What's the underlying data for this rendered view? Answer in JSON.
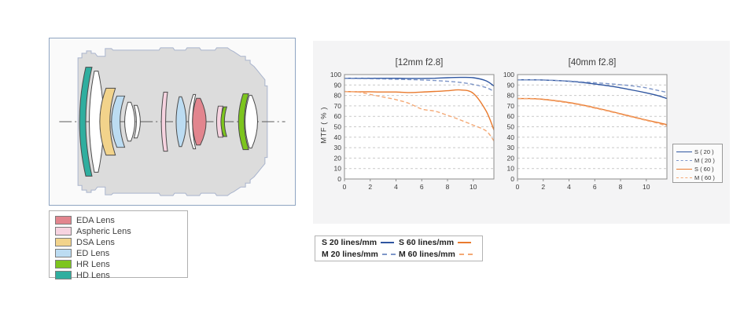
{
  "colors": {
    "eda": "#e2858e",
    "aspheric": "#f7d3e0",
    "dsa": "#f2d38b",
    "ed": "#bcdcf2",
    "hr": "#7dc51e",
    "hd": "#2fae9f",
    "barrel_fill": "#dcdcdc",
    "barrel_stroke": "#a9b4cd",
    "s20": "#2f56a0",
    "m20": "#7e96c8",
    "s60": "#e97a2e",
    "m60": "#f4a874"
  },
  "lens_legend": {
    "items": [
      {
        "key": "eda",
        "label": "EDA Lens"
      },
      {
        "key": "aspheric",
        "label": "Aspheric Lens"
      },
      {
        "key": "dsa",
        "label": "DSA Lens"
      },
      {
        "key": "ed",
        "label": "ED Lens"
      },
      {
        "key": "hr",
        "label": "HR Lens"
      },
      {
        "key": "hd",
        "label": "HD Lens"
      }
    ]
  },
  "mtf": {
    "legend_right": {
      "items": [
        {
          "label": "S ( 20 )",
          "color_key": "s20",
          "dash": false
        },
        {
          "label": "M ( 20 )",
          "color_key": "m20",
          "dash": true
        },
        {
          "label": "S ( 60 )",
          "color_key": "s60",
          "dash": false
        },
        {
          "label": "M ( 60 )",
          "color_key": "m60",
          "dash": true
        }
      ]
    },
    "legend_bottom": {
      "items": [
        {
          "label": "S 20 lines/mm",
          "color_key": "s20",
          "dash": false
        },
        {
          "label": "S 60 lines/mm",
          "color_key": "s60",
          "dash": false
        },
        {
          "label": "M 20 lines/mm",
          "color_key": "m20",
          "dash": true
        },
        {
          "label": "M 60 lines/mm",
          "color_key": "m60",
          "dash": true
        }
      ]
    }
  },
  "chart_data": [
    {
      "type": "line",
      "title": "[12mm f2.8]",
      "xlabel": "",
      "ylabel": "MTF ( % )",
      "xlim": [
        0,
        11.6
      ],
      "ylim": [
        0,
        100
      ],
      "xticks": [
        0,
        2,
        4,
        6,
        8,
        10
      ],
      "yticks": [
        0,
        10,
        20,
        30,
        40,
        50,
        60,
        70,
        80,
        90,
        100
      ],
      "grid": "horizontal-dashed",
      "legend_position": "outside-right",
      "x": [
        0,
        1,
        2,
        3,
        4,
        5,
        6,
        7,
        8,
        9,
        10,
        11,
        11.6
      ],
      "series": [
        {
          "name": "S ( 20 )",
          "color": "#2f56a0",
          "dash": false,
          "values": [
            96.5,
            96.5,
            96.5,
            96.5,
            96.5,
            96.3,
            96.3,
            96.5,
            97,
            97.3,
            97,
            94,
            89
          ]
        },
        {
          "name": "M ( 20 )",
          "color": "#7e96c8",
          "dash": true,
          "values": [
            96.3,
            96.2,
            96,
            95.8,
            95.5,
            95.2,
            94.8,
            94.3,
            93.5,
            92.5,
            90.5,
            87.5,
            84
          ]
        },
        {
          "name": "S ( 60 )",
          "color": "#e97a2e",
          "dash": false,
          "values": [
            83.8,
            83.5,
            83.5,
            83.3,
            83.3,
            82.8,
            83.2,
            83.8,
            84.5,
            85.3,
            82,
            65,
            47
          ]
        },
        {
          "name": "M ( 60 )",
          "color": "#f4a874",
          "dash": true,
          "values": [
            83.8,
            83.3,
            81,
            78.5,
            76,
            72.5,
            67,
            65,
            61,
            56.5,
            51.5,
            46,
            36.5
          ]
        }
      ]
    },
    {
      "type": "line",
      "title": "[40mm f2.8]",
      "xlabel": "",
      "ylabel": "",
      "xlim": [
        0,
        11.6
      ],
      "ylim": [
        0,
        100
      ],
      "xticks": [
        0,
        2,
        4,
        6,
        8,
        10
      ],
      "yticks": [
        0,
        10,
        20,
        30,
        40,
        50,
        60,
        70,
        80,
        90,
        100
      ],
      "grid": "horizontal-dashed",
      "legend_position": "outside-right",
      "x": [
        0,
        1,
        2,
        3,
        4,
        5,
        6,
        7,
        8,
        9,
        10,
        11,
        11.6
      ],
      "series": [
        {
          "name": "S ( 20 )",
          "color": "#2f56a0",
          "dash": false,
          "values": [
            95,
            95,
            94.8,
            94.3,
            93.5,
            92.5,
            91,
            89.3,
            87.3,
            85,
            82.5,
            79.5,
            77
          ]
        },
        {
          "name": "M ( 20 )",
          "color": "#7e96c8",
          "dash": true,
          "values": [
            95,
            95,
            94.8,
            94.3,
            93.8,
            93,
            92.2,
            91.3,
            90.3,
            89,
            87.3,
            84.5,
            83
          ]
        },
        {
          "name": "S ( 60 )",
          "color": "#e97a2e",
          "dash": false,
          "values": [
            77,
            77,
            76.3,
            75,
            73.2,
            71,
            68.3,
            65.5,
            62.5,
            59.5,
            56.5,
            53.8,
            52
          ]
        },
        {
          "name": "M ( 60 )",
          "color": "#f4a874",
          "dash": true,
          "values": [
            77,
            76.8,
            76,
            74.5,
            72.7,
            70.5,
            67.8,
            65,
            62,
            59,
            56,
            53,
            50.5
          ]
        }
      ]
    }
  ]
}
